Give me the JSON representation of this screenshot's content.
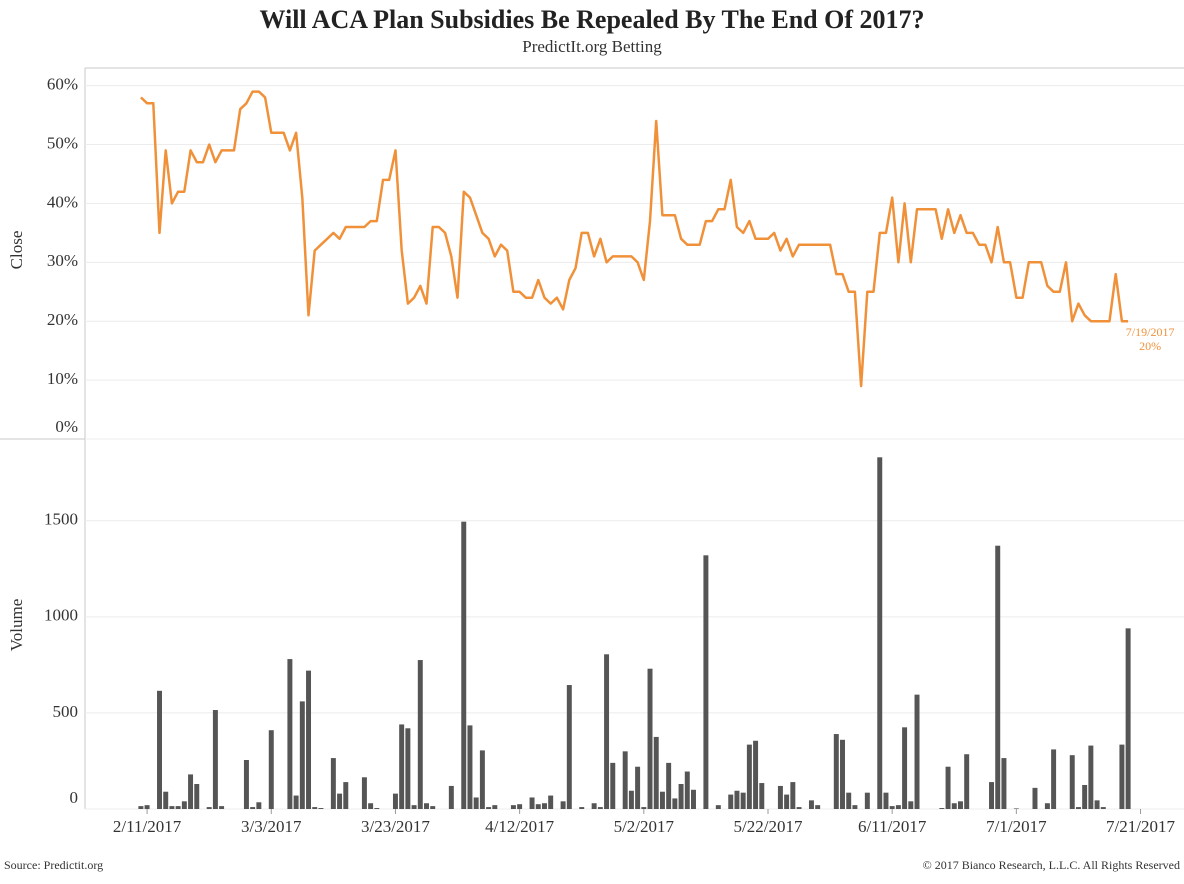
{
  "title": "Will ACA Plan Subsidies Be Repealed By The End Of 2017?",
  "subtitle": "PredictIt.org Betting",
  "source": "Source: Predictit.org",
  "copyright": "© 2017 Bianco Research, L.L.C. All Rights Reserved",
  "chart_data": {
    "type": "combo",
    "ylabel": "Close",
    "y2label": "Volume",
    "grid": true,
    "x": [
      "2/10/2017",
      "2/11/2017",
      "2/12/2017",
      "2/13/2017",
      "2/14/2017",
      "2/15/2017",
      "2/16/2017",
      "2/17/2017",
      "2/18/2017",
      "2/19/2017",
      "2/20/2017",
      "2/21/2017",
      "2/22/2017",
      "2/23/2017",
      "2/24/2017",
      "2/25/2017",
      "2/26/2017",
      "2/27/2017",
      "2/28/2017",
      "3/1/2017",
      "3/2/2017",
      "3/3/2017",
      "3/4/2017",
      "3/5/2017",
      "3/6/2017",
      "3/7/2017",
      "3/8/2017",
      "3/9/2017",
      "3/10/2017",
      "3/11/2017",
      "3/12/2017",
      "3/13/2017",
      "3/14/2017",
      "3/15/2017",
      "3/16/2017",
      "3/17/2017",
      "3/18/2017",
      "3/19/2017",
      "3/20/2017",
      "3/21/2017",
      "3/22/2017",
      "3/23/2017",
      "3/24/2017",
      "3/25/2017",
      "3/26/2017",
      "3/27/2017",
      "3/28/2017",
      "3/29/2017",
      "3/30/2017",
      "3/31/2017",
      "4/1/2017",
      "4/2/2017",
      "4/3/2017",
      "4/4/2017",
      "4/5/2017",
      "4/6/2017",
      "4/7/2017",
      "4/8/2017",
      "4/9/2017",
      "4/10/2017",
      "4/11/2017",
      "4/12/2017",
      "4/13/2017",
      "4/14/2017",
      "4/15/2017",
      "4/16/2017",
      "4/17/2017",
      "4/18/2017",
      "4/19/2017",
      "4/20/2017",
      "4/21/2017",
      "4/22/2017",
      "4/23/2017",
      "4/24/2017",
      "4/25/2017",
      "4/26/2017",
      "4/27/2017",
      "4/28/2017",
      "4/29/2017",
      "4/30/2017",
      "5/1/2017",
      "5/2/2017",
      "5/3/2017",
      "5/4/2017",
      "5/5/2017",
      "5/6/2017",
      "5/7/2017",
      "5/8/2017",
      "5/9/2017",
      "5/10/2017",
      "5/11/2017",
      "5/12/2017",
      "5/13/2017",
      "5/14/2017",
      "5/15/2017",
      "5/16/2017",
      "5/17/2017",
      "5/18/2017",
      "5/19/2017",
      "5/20/2017",
      "5/21/2017",
      "5/22/2017",
      "5/23/2017",
      "5/24/2017",
      "5/25/2017",
      "5/26/2017",
      "5/27/2017",
      "5/28/2017",
      "5/29/2017",
      "5/30/2017",
      "5/31/2017",
      "6/1/2017",
      "6/2/2017",
      "6/3/2017",
      "6/4/2017",
      "6/5/2017",
      "6/6/2017",
      "6/7/2017",
      "6/8/2017",
      "6/9/2017",
      "6/10/2017",
      "6/11/2017",
      "6/12/2017",
      "6/13/2017",
      "6/14/2017",
      "6/15/2017",
      "6/16/2017",
      "6/17/2017",
      "6/18/2017",
      "6/19/2017",
      "6/20/2017",
      "6/21/2017",
      "6/22/2017",
      "6/23/2017",
      "6/24/2017",
      "6/25/2017",
      "6/26/2017",
      "6/27/2017",
      "6/28/2017",
      "6/29/2017",
      "6/30/2017",
      "7/1/2017",
      "7/2/2017",
      "7/3/2017",
      "7/4/2017",
      "7/5/2017",
      "7/6/2017",
      "7/7/2017",
      "7/8/2017",
      "7/9/2017",
      "7/10/2017",
      "7/11/2017",
      "7/12/2017",
      "7/13/2017",
      "7/14/2017",
      "7/15/2017",
      "7/16/2017",
      "7/17/2017",
      "7/18/2017",
      "7/19/2017"
    ],
    "series": [
      {
        "type": "line",
        "color": "#f0913a",
        "values": [
          58,
          57,
          57,
          35,
          49,
          40,
          42,
          42,
          49,
          47,
          47,
          50,
          47,
          49,
          49,
          49,
          56,
          57,
          59,
          59,
          58,
          52,
          52,
          52,
          49,
          52,
          41,
          21,
          32,
          33,
          34,
          35,
          34,
          36,
          36,
          36,
          36,
          37,
          37,
          44,
          44,
          49,
          32,
          23,
          24,
          26,
          23,
          36,
          36,
          35,
          31,
          24,
          42,
          41,
          38,
          35,
          34,
          31,
          33,
          32,
          25,
          25,
          24,
          24,
          27,
          24,
          23,
          24,
          22,
          27,
          29,
          35,
          35,
          31,
          34,
          30,
          31,
          31,
          31,
          31,
          30,
          27,
          37,
          54,
          38,
          38,
          38,
          34,
          33,
          33,
          33,
          37,
          37,
          39,
          39,
          44,
          36,
          35,
          37,
          34,
          34,
          34,
          35,
          32,
          34,
          31,
          33,
          33,
          33,
          33,
          33,
          33,
          28,
          28,
          25,
          25,
          9,
          25,
          25,
          35,
          35,
          41,
          30,
          40,
          30,
          39,
          39,
          39,
          39,
          34,
          39,
          35,
          38,
          35,
          35,
          33,
          33,
          30,
          36,
          30,
          30,
          24,
          24,
          30,
          30,
          30,
          26,
          25,
          25,
          30,
          20,
          23,
          21,
          20,
          20,
          20,
          20,
          28,
          20,
          20
        ]
      },
      {
        "type": "bar",
        "axis": "y2",
        "color": "#555555",
        "values": [
          15,
          20,
          0,
          615,
          90,
          15,
          15,
          40,
          180,
          130,
          0,
          10,
          515,
          15,
          0,
          0,
          0,
          255,
          10,
          35,
          0,
          410,
          0,
          0,
          780,
          70,
          560,
          720,
          10,
          5,
          0,
          265,
          80,
          140,
          0,
          0,
          165,
          30,
          5,
          0,
          0,
          80,
          440,
          420,
          20,
          775,
          30,
          15,
          0,
          0,
          120,
          0,
          1495,
          435,
          60,
          305,
          10,
          20,
          0,
          0,
          20,
          25,
          0,
          60,
          25,
          30,
          70,
          0,
          40,
          645,
          0,
          10,
          0,
          30,
          10,
          805,
          240,
          0,
          300,
          95,
          220,
          10,
          730,
          375,
          90,
          240,
          55,
          130,
          195,
          100,
          0,
          1320,
          0,
          20,
          0,
          75,
          95,
          85,
          335,
          355,
          135,
          0,
          0,
          120,
          75,
          140,
          10,
          0,
          45,
          20,
          0,
          0,
          390,
          360,
          85,
          20,
          0,
          85,
          0,
          1830,
          85,
          15,
          20,
          425,
          40,
          595,
          0,
          0,
          0,
          5,
          220,
          30,
          40,
          285,
          0,
          0,
          0,
          140,
          1370,
          265,
          0,
          3,
          0,
          0,
          110,
          0,
          30,
          310,
          0,
          0,
          280,
          10,
          125,
          330,
          45,
          10,
          0,
          0,
          335,
          940
        ]
      }
    ],
    "end_labels": [
      "7/19/2017",
      "20%"
    ],
    "xlim": [
      "2/1/2017",
      "7/28/2017"
    ],
    "xticks": [
      "2/11/2017",
      "3/3/2017",
      "3/23/2017",
      "4/12/2017",
      "5/2/2017",
      "5/22/2017",
      "6/11/2017",
      "7/1/2017",
      "7/21/2017"
    ],
    "ylim": [
      0,
      63
    ],
    "yticks": [
      {
        "value": 0,
        "label": "0%"
      },
      {
        "value": 10,
        "label": "10%"
      },
      {
        "value": 20,
        "label": "20%"
      },
      {
        "value": 30,
        "label": "30%"
      },
      {
        "value": 40,
        "label": "40%"
      },
      {
        "value": 50,
        "label": "50%"
      },
      {
        "value": 60,
        "label": "60%"
      }
    ],
    "y2lim": [
      0,
      1920
    ],
    "y2ticks": [
      0,
      500,
      1000,
      1500
    ]
  }
}
